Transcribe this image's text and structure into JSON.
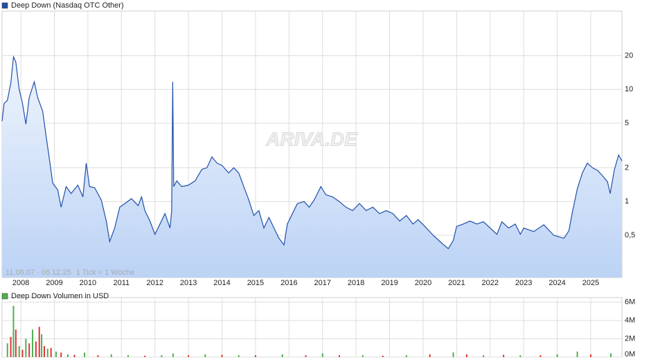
{
  "chart_data": [
    {
      "type": "line",
      "series": [
        {
          "name": "Deep Down (Nasdaq OTC Other)",
          "color": "#1f4fa8",
          "x": [
            2007.44,
            2007.5,
            2007.6,
            2007.7,
            2007.78,
            2007.85,
            2007.95,
            2008.05,
            2008.15,
            2008.25,
            2008.4,
            2008.5,
            2008.65,
            2008.75,
            2008.85,
            2008.95,
            2009.1,
            2009.2,
            2009.35,
            2009.5,
            2009.7,
            2009.85,
            2009.95,
            2010.05,
            2010.2,
            2010.4,
            2010.55,
            2010.65,
            2010.8,
            2010.95,
            2011.1,
            2011.3,
            2011.5,
            2011.6,
            2011.7,
            2011.85,
            2012.0,
            2012.15,
            2012.3,
            2012.45,
            2012.5,
            2012.53,
            2012.56,
            2012.65,
            2012.8,
            2013.0,
            2013.2,
            2013.4,
            2013.55,
            2013.7,
            2013.85,
            2014.0,
            2014.2,
            2014.35,
            2014.5,
            2014.65,
            2014.8,
            2014.95,
            2015.1,
            2015.25,
            2015.4,
            2015.55,
            2015.7,
            2015.85,
            2015.95,
            2016.1,
            2016.25,
            2016.45,
            2016.6,
            2016.75,
            2016.95,
            2017.1,
            2017.3,
            2017.5,
            2017.7,
            2017.9,
            2018.1,
            2018.3,
            2018.5,
            2018.7,
            2018.9,
            2019.1,
            2019.3,
            2019.5,
            2019.7,
            2019.85,
            2020.05,
            2020.3,
            2020.5,
            2020.75,
            2020.9,
            2021.0,
            2021.2,
            2021.4,
            2021.6,
            2021.8,
            2022.0,
            2022.2,
            2022.35,
            2022.55,
            2022.75,
            2022.9,
            2023.0,
            2023.3,
            2023.6,
            2023.9,
            2024.2,
            2024.35,
            2024.45,
            2024.6,
            2024.75,
            2024.9,
            2025.05,
            2025.2,
            2025.35,
            2025.5,
            2025.58,
            2025.7,
            2025.83,
            2025.93
          ],
          "values": [
            5.2,
            7.5,
            8,
            11.4,
            19.5,
            17.6,
            10,
            7.5,
            4.9,
            8.5,
            11.7,
            8.5,
            6.4,
            3.9,
            2.4,
            1.46,
            1.27,
            0.89,
            1.36,
            1.18,
            1.4,
            1.1,
            2.2,
            1.36,
            1.33,
            1.03,
            0.67,
            0.44,
            0.58,
            0.89,
            0.96,
            1.06,
            0.92,
            1.1,
            0.83,
            0.67,
            0.51,
            0.63,
            0.78,
            0.58,
            0.83,
            11.7,
            1.36,
            1.53,
            1.36,
            1.4,
            1.53,
            1.94,
            2.0,
            2.5,
            2.2,
            2.1,
            1.8,
            2.0,
            1.8,
            1.36,
            1.03,
            0.75,
            0.83,
            0.58,
            0.72,
            0.58,
            0.47,
            0.41,
            0.63,
            0.78,
            0.96,
            1.0,
            0.89,
            1.03,
            1.36,
            1.15,
            1.1,
            1.0,
            0.89,
            0.83,
            0.96,
            0.83,
            0.89,
            0.78,
            0.83,
            0.78,
            0.67,
            0.75,
            0.63,
            0.69,
            0.6,
            0.5,
            0.44,
            0.38,
            0.45,
            0.6,
            0.63,
            0.67,
            0.63,
            0.66,
            0.58,
            0.51,
            0.66,
            0.58,
            0.63,
            0.51,
            0.58,
            0.54,
            0.62,
            0.5,
            0.47,
            0.55,
            0.8,
            1.3,
            1.8,
            2.2,
            2.0,
            1.9,
            1.7,
            1.5,
            1.18,
            1.9,
            2.6,
            2.3
          ]
        }
      ],
      "log_scale": true,
      "xlim": [
        2007.44,
        2025.93
      ],
      "xticks": [
        2008,
        2009,
        2010,
        2011,
        2012,
        2013,
        2014,
        2015,
        2016,
        2017,
        2018,
        2019,
        2020,
        2021,
        2022,
        2023,
        2024,
        2025
      ],
      "ylim": [
        0.21,
        50
      ],
      "yticks": [
        {
          "value": 0.5,
          "label": "0,5"
        },
        1,
        2,
        5,
        10,
        20
      ],
      "grid": true,
      "annotations": [
        "11.06.07 - 06.12.25",
        "1 Tick = 1 Woche"
      ],
      "watermark": "ARIVA.DE"
    },
    {
      "type": "bar",
      "series": [
        {
          "name": "Deep Down Volumen in USD",
          "color": "#4caf50",
          "x": [
            2007.6,
            2007.7,
            2007.78,
            2007.85,
            2007.95,
            2008.05,
            2008.15,
            2008.25,
            2008.35,
            2008.45,
            2008.55,
            2008.62,
            2008.7,
            2008.8,
            2008.9,
            2009.05,
            2009.2,
            2009.4,
            2009.6,
            2009.9,
            2010.3,
            2010.7,
            2011.2,
            2011.7,
            2012.2,
            2012.54,
            2013.0,
            2013.5,
            2014.0,
            2014.5,
            2015.0,
            2015.8,
            2016.5,
            2017.0,
            2017.5,
            2018.2,
            2018.8,
            2019.5,
            2020.2,
            2020.9,
            2021.3,
            2021.8,
            2022.4,
            2022.9,
            2023.5,
            2024.0,
            2024.6,
            2025.0,
            2025.6
          ],
          "values": [
            1500000,
            2200000,
            5600000,
            3000000,
            1200000,
            800000,
            2000000,
            1500000,
            3000000,
            1700000,
            3300000,
            2500000,
            1200000,
            900000,
            1000000,
            600000,
            500000,
            300000,
            250000,
            500000,
            200000,
            300000,
            200000,
            150000,
            200000,
            400000,
            200000,
            300000,
            250000,
            200000,
            200000,
            300000,
            200000,
            400000,
            200000,
            200000,
            150000,
            200000,
            300000,
            500000,
            300000,
            200000,
            250000,
            200000,
            200000,
            300000,
            600000,
            300000,
            400000
          ],
          "bar_colors": [
            "#4caf50",
            "#d33",
            "#4caf50",
            "#d33",
            "#4caf50",
            "#d33",
            "#4caf50",
            "#d33",
            "#4caf50",
            "#d33",
            "#d33",
            "#4caf50",
            "#d33",
            "#4caf50",
            "#d33",
            "#4caf50",
            "#d33",
            "#4caf50",
            "#d33",
            "#4caf50",
            "#d33",
            "#4caf50",
            "#4caf50",
            "#d33",
            "#4caf50",
            "#4caf50",
            "#d33",
            "#4caf50",
            "#d33",
            "#4caf50",
            "#d33",
            "#4caf50",
            "#d33",
            "#4caf50",
            "#d33",
            "#4caf50",
            "#d33",
            "#4caf50",
            "#d33",
            "#4caf50",
            "#d33",
            "#4caf50",
            "#d33",
            "#4caf50",
            "#d33",
            "#4caf50",
            "#4caf50",
            "#d33",
            "#4caf50"
          ]
        }
      ],
      "xlim": [
        2007.44,
        2025.93
      ],
      "ylim": [
        0,
        6500000
      ],
      "yticks": [
        {
          "value": 0,
          "label": "0M"
        },
        {
          "value": 2000000,
          "label": "2M"
        },
        {
          "value": 4000000,
          "label": "4M"
        },
        {
          "value": 6000000,
          "label": "6M"
        }
      ],
      "grid": true
    }
  ]
}
